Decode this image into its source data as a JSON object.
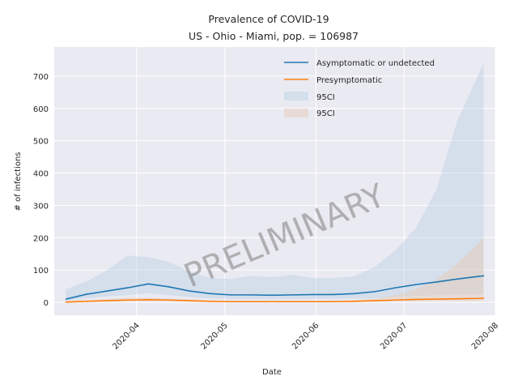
{
  "chart_data": {
    "type": "line",
    "title": "Prevalence of COVID-19",
    "subtitle": "US - Ohio - Miami, pop. = 106987",
    "xlabel": "Date",
    "ylabel": "# of infections",
    "watermark": "PRELIMINARY",
    "x_ticks": [
      "2020-04",
      "2020-05",
      "2020-06",
      "2020-07",
      "2020-08"
    ],
    "y_ticks": [
      0,
      100,
      200,
      300,
      400,
      500,
      600,
      700
    ],
    "ylim": [
      -40,
      790
    ],
    "xlim": [
      "2020-03-04",
      "2020-08-01"
    ],
    "grid": true,
    "legend_position": "top-right",
    "x": [
      "2020-03-08",
      "2020-03-15",
      "2020-03-22",
      "2020-03-29",
      "2020-04-05",
      "2020-04-12",
      "2020-04-19",
      "2020-04-26",
      "2020-05-03",
      "2020-05-10",
      "2020-05-17",
      "2020-05-24",
      "2020-05-31",
      "2020-06-07",
      "2020-06-14",
      "2020-06-21",
      "2020-06-28",
      "2020-07-05",
      "2020-07-12",
      "2020-07-19",
      "2020-07-26",
      "2020-07-28"
    ],
    "series": [
      {
        "name": "Asymptomatic or undetected",
        "color": "#1f77b4",
        "values": [
          10,
          25,
          35,
          45,
          57,
          48,
          35,
          27,
          23,
          23,
          22,
          23,
          24,
          24,
          27,
          33,
          45,
          55,
          63,
          72,
          80,
          82
        ],
        "ci_label": "95CI",
        "ci_color": "#b0c8e0",
        "ci_lower": [
          5,
          12,
          18,
          22,
          28,
          22,
          16,
          12,
          10,
          10,
          9,
          10,
          10,
          10,
          11,
          13,
          17,
          20,
          22,
          24,
          25,
          25
        ],
        "ci_upper": [
          40,
          65,
          100,
          145,
          140,
          125,
          95,
          75,
          72,
          82,
          78,
          85,
          75,
          75,
          80,
          110,
          160,
          230,
          350,
          560,
          700,
          740
        ]
      },
      {
        "name": "Presymptomatic",
        "color": "#ff7f0e",
        "values": [
          1,
          3,
          5,
          7,
          8,
          7,
          5,
          3,
          2,
          2,
          2,
          2,
          2,
          2,
          3,
          5,
          7,
          9,
          10,
          11,
          12,
          13
        ],
        "ci_label": "95CI",
        "ci_color": "#e6c9b3",
        "ci_lower": [
          0,
          1,
          2,
          3,
          3,
          3,
          2,
          1,
          1,
          1,
          1,
          1,
          1,
          1,
          1,
          2,
          3,
          3,
          4,
          4,
          4,
          4
        ],
        "ci_upper": [
          3,
          6,
          10,
          14,
          14,
          12,
          9,
          6,
          5,
          5,
          5,
          5,
          5,
          5,
          7,
          12,
          22,
          40,
          70,
          120,
          180,
          200
        ]
      }
    ]
  }
}
